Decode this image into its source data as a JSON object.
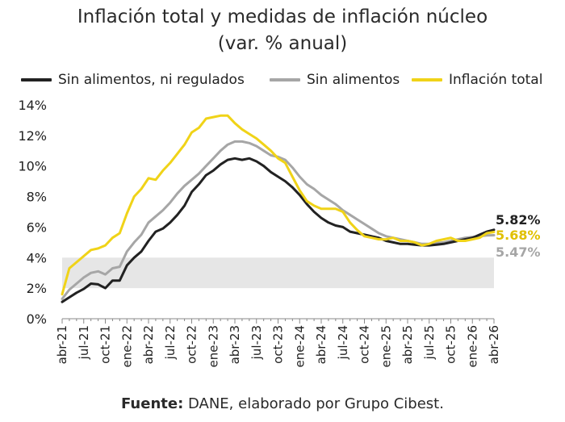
{
  "chart_data": {
    "type": "line",
    "title": "Inflación total y medidas de inflación núcleo",
    "subtitle": "(var. % anual)",
    "source_label": "Fuente:",
    "source_text": " DANE, elaborado por Grupo Cibest.",
    "ylim": [
      0,
      14
    ],
    "y_ticks": [
      "0%",
      "2%",
      "4%",
      "6%",
      "8%",
      "10%",
      "12%",
      "14%"
    ],
    "band": [
      2,
      4
    ],
    "band_color": "#e6e6e6",
    "x_months": [
      "abr-21",
      "may-21",
      "jun-21",
      "jul-21",
      "ago-21",
      "sep-21",
      "oct-21",
      "nov-21",
      "dic-21",
      "ene-22",
      "feb-22",
      "mar-22",
      "abr-22",
      "may-22",
      "jun-22",
      "jul-22",
      "ago-22",
      "sep-22",
      "oct-22",
      "nov-22",
      "dic-22",
      "ene-23",
      "feb-23",
      "mar-23",
      "abr-23",
      "may-23",
      "jun-23",
      "jul-23",
      "ago-23",
      "sep-23",
      "oct-23",
      "nov-23",
      "dic-23",
      "ene-24",
      "feb-24",
      "mar-24",
      "abr-24",
      "may-24",
      "jun-24",
      "jul-24",
      "ago-24",
      "sep-24",
      "oct-24",
      "nov-24",
      "dic-24",
      "ene-25",
      "feb-25",
      "mar-25",
      "abr-25",
      "may-25",
      "jun-25",
      "jul-25",
      "ago-25",
      "sep-25",
      "oct-25",
      "nov-25",
      "dic-25",
      "ene-26",
      "feb-26",
      "mar-26",
      "abr-26"
    ],
    "x_tick_labels": [
      "abr-21",
      "jul-21",
      "oct-21",
      "ene-22",
      "abr-22",
      "jul-22",
      "oct-22",
      "ene-23",
      "abr-23",
      "jul-23",
      "oct-23",
      "ene-24",
      "abr-24",
      "jul-24",
      "oct-24",
      "ene-25",
      "abr-25",
      "jul-25",
      "oct-25",
      "ene-26",
      "abr-26"
    ],
    "series": [
      {
        "name": "Sin alimentos, ni regulados",
        "color": "#222222",
        "end_label": "5.82%",
        "values": [
          1.1,
          1.4,
          1.7,
          1.95,
          2.3,
          2.25,
          2.0,
          2.5,
          2.5,
          3.5,
          4.0,
          4.4,
          5.1,
          5.7,
          5.9,
          6.3,
          6.8,
          7.4,
          8.3,
          8.8,
          9.4,
          9.7,
          10.1,
          10.4,
          10.5,
          10.4,
          10.5,
          10.3,
          10.0,
          9.6,
          9.3,
          9.0,
          8.6,
          8.1,
          7.5,
          7.0,
          6.6,
          6.3,
          6.1,
          6.0,
          5.7,
          5.6,
          5.5,
          5.4,
          5.3,
          5.1,
          5.0,
          4.9,
          4.9,
          4.85,
          4.8,
          4.8,
          4.85,
          4.9,
          5.0,
          5.1,
          5.2,
          5.3,
          5.5,
          5.7,
          5.82
        ]
      },
      {
        "name": "Sin alimentos",
        "color": "#a6a6a6",
        "end_label": "5.47%",
        "values": [
          1.3,
          1.9,
          2.3,
          2.7,
          3.0,
          3.1,
          2.9,
          3.3,
          3.4,
          4.4,
          5.0,
          5.5,
          6.3,
          6.7,
          7.1,
          7.6,
          8.2,
          8.7,
          9.1,
          9.5,
          10.0,
          10.5,
          11.0,
          11.4,
          11.6,
          11.6,
          11.5,
          11.3,
          11.0,
          10.7,
          10.6,
          10.4,
          9.9,
          9.3,
          8.8,
          8.5,
          8.1,
          7.8,
          7.5,
          7.1,
          6.8,
          6.5,
          6.2,
          5.9,
          5.6,
          5.4,
          5.3,
          5.2,
          5.1,
          5.0,
          4.9,
          4.9,
          4.95,
          5.0,
          5.1,
          5.2,
          5.3,
          5.35,
          5.4,
          5.45,
          5.47
        ]
      },
      {
        "name": "Inflación total",
        "color": "#f0d318",
        "end_label": "5.68%",
        "values": [
          1.6,
          3.3,
          3.7,
          4.1,
          4.5,
          4.6,
          4.8,
          5.3,
          5.6,
          6.9,
          8.0,
          8.5,
          9.2,
          9.1,
          9.7,
          10.2,
          10.8,
          11.4,
          12.2,
          12.5,
          13.1,
          13.2,
          13.3,
          13.3,
          12.8,
          12.4,
          12.1,
          11.8,
          11.4,
          11.0,
          10.5,
          10.2,
          9.3,
          8.4,
          7.7,
          7.4,
          7.2,
          7.2,
          7.2,
          7.0,
          6.3,
          5.8,
          5.4,
          5.3,
          5.2,
          5.2,
          5.3,
          5.1,
          5.1,
          5.0,
          4.8,
          4.9,
          5.1,
          5.2,
          5.3,
          5.1,
          5.1,
          5.2,
          5.3,
          5.6,
          5.68
        ]
      }
    ],
    "legend_position": "top"
  }
}
